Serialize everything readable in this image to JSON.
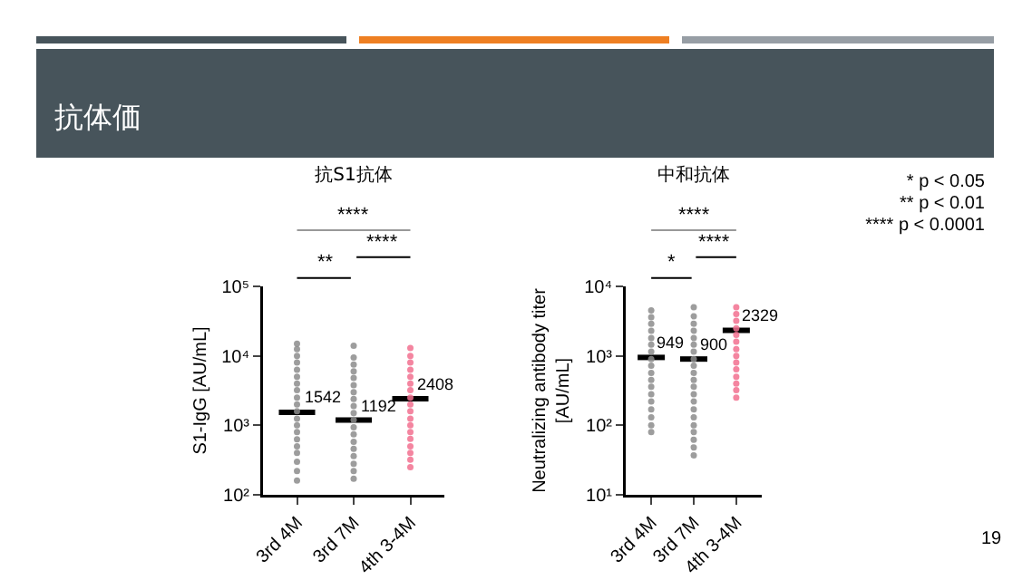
{
  "chart_data": [
    {
      "type": "scatter",
      "title": "抗S1抗体",
      "ylabel": "S1-IgG [AU/mL]",
      "categories": [
        "3rd 4M",
        "3rd 7M",
        "4th 3-4M"
      ],
      "log": "y",
      "ylim": [
        100,
        100000
      ],
      "yticks": [
        {
          "value": 100,
          "label": "10²"
        },
        {
          "value": 1000,
          "label": "10³"
        },
        {
          "value": 10000,
          "label": "10⁴"
        },
        {
          "value": 100000,
          "label": "10⁵"
        }
      ],
      "marker": "circle",
      "annotations": [
        "****",
        "**",
        "****",
        "抗体価"
      ],
      "ref_lines": [
        {
          "axis": "y",
          "value": 1542,
          "label": "1542",
          "color": "#000000"
        },
        {
          "axis": "y",
          "value": 1192,
          "label": "1192",
          "color": "#000000"
        },
        {
          "axis": "y",
          "value": 2408,
          "label": "2408",
          "color": "#000000"
        }
      ],
      "series": [
        {
          "color": "#8c8c8c",
          "x": [
            "3rd 4M",
            "3rd 4M",
            "3rd 4M",
            "3rd 4M",
            "3rd 4M",
            "3rd 4M",
            "3rd 4M",
            "3rd 4M",
            "3rd 4M",
            "3rd 4M",
            "3rd 4M",
            "3rd 4M",
            "3rd 4M",
            "3rd 4M",
            "3rd 4M",
            "3rd 4M",
            "3rd 4M",
            "3rd 4M",
            "3rd 4M",
            "3rd 4M"
          ],
          "values": [
            160,
            220,
            300,
            400,
            500,
            630,
            800,
            1000,
            1250,
            1600,
            2000,
            2500,
            3200,
            4000,
            5000,
            6300,
            8000,
            10000,
            12500,
            15000
          ]
        },
        {
          "color": "#8c8c8c",
          "x": [
            "3rd 7M",
            "3rd 7M",
            "3rd 7M",
            "3rd 7M",
            "3rd 7M",
            "3rd 7M",
            "3rd 7M",
            "3rd 7M",
            "3rd 7M",
            "3rd 7M",
            "3rd 7M",
            "3rd 7M",
            "3rd 7M",
            "3rd 7M",
            "3rd 7M",
            "3rd 7M",
            "3rd 7M",
            "3rd 7M",
            "3rd 7M"
          ],
          "values": [
            170,
            220,
            280,
            360,
            460,
            580,
            740,
            940,
            1200,
            1500,
            1900,
            2400,
            3000,
            3800,
            4800,
            6000,
            7500,
            9500,
            14000
          ]
        },
        {
          "color": "#f2708f",
          "x": [
            "4th 3-4M",
            "4th 3-4M",
            "4th 3-4M",
            "4th 3-4M",
            "4th 3-4M",
            "4th 3-4M",
            "4th 3-4M",
            "4th 3-4M",
            "4th 3-4M",
            "4th 3-4M",
            "4th 3-4M",
            "4th 3-4M",
            "4th 3-4M",
            "4th 3-4M",
            "4th 3-4M",
            "4th 3-4M",
            "4th 3-4M",
            "4th 3-4M"
          ],
          "values": [
            250,
            320,
            400,
            500,
            640,
            800,
            1000,
            1250,
            1600,
            2000,
            2500,
            3200,
            4000,
            5000,
            6300,
            8000,
            10000,
            13000
          ]
        }
      ]
    },
    {
      "type": "scatter",
      "title": "中和抗体",
      "ylabel": "Neutralizing antibody titer\n[AU/mL]",
      "categories": [
        "3rd 4M",
        "3rd 7M",
        "4th 3-4M"
      ],
      "log": "y",
      "ylim": [
        10,
        10000
      ],
      "yticks": [
        {
          "value": 10,
          "label": "10¹"
        },
        {
          "value": 100,
          "label": "10²"
        },
        {
          "value": 1000,
          "label": "10³"
        },
        {
          "value": 10000,
          "label": "10⁴"
        }
      ],
      "marker": "circle",
      "annotations": [
        "****",
        "*",
        "****",
        "* p < 0.05",
        "** p < 0.01",
        "**** p < 0.0001",
        "19"
      ],
      "ref_lines": [
        {
          "axis": "y",
          "value": 949,
          "label": "949",
          "color": "#000000"
        },
        {
          "axis": "y",
          "value": 900,
          "label": "900",
          "color": "#000000"
        },
        {
          "axis": "y",
          "value": 2329,
          "label": "2329",
          "color": "#000000"
        }
      ],
      "series": [
        {
          "color": "#8c8c8c",
          "x": [
            "3rd 4M",
            "3rd 4M",
            "3rd 4M",
            "3rd 4M",
            "3rd 4M",
            "3rd 4M",
            "3rd 4M",
            "3rd 4M",
            "3rd 4M",
            "3rd 4M",
            "3rd 4M",
            "3rd 4M",
            "3rd 4M",
            "3rd 4M",
            "3rd 4M",
            "3rd 4M",
            "3rd 4M",
            "3rd 4M"
          ],
          "values": [
            80,
            100,
            130,
            170,
            220,
            280,
            360,
            450,
            570,
            720,
            900,
            1150,
            1450,
            1800,
            2300,
            2900,
            3600,
            4500
          ]
        },
        {
          "color": "#8c8c8c",
          "x": [
            "3rd 7M",
            "3rd 7M",
            "3rd 7M",
            "3rd 7M",
            "3rd 7M",
            "3rd 7M",
            "3rd 7M",
            "3rd 7M",
            "3rd 7M",
            "3rd 7M",
            "3rd 7M",
            "3rd 7M",
            "3rd 7M",
            "3rd 7M",
            "3rd 7M",
            "3rd 7M",
            "3rd 7M",
            "3rd 7M",
            "3rd 7M",
            "3rd 7M",
            "3rd 7M"
          ],
          "values": [
            37,
            48,
            62,
            80,
            100,
            130,
            170,
            220,
            280,
            360,
            450,
            570,
            720,
            900,
            1150,
            1450,
            1800,
            2300,
            2900,
            3700,
            5000
          ]
        },
        {
          "color": "#f2708f",
          "x": [
            "4th 3-4M",
            "4th 3-4M",
            "4th 3-4M",
            "4th 3-4M",
            "4th 3-4M",
            "4th 3-4M",
            "4th 3-4M",
            "4th 3-4M",
            "4th 3-4M",
            "4th 3-4M",
            "4th 3-4M",
            "4th 3-4M",
            "4th 3-4M",
            "4th 3-4M"
          ],
          "values": [
            250,
            320,
            400,
            500,
            640,
            800,
            1000,
            1250,
            1600,
            2000,
            2500,
            3200,
            4000,
            5000
          ]
        }
      ]
    }
  ]
}
